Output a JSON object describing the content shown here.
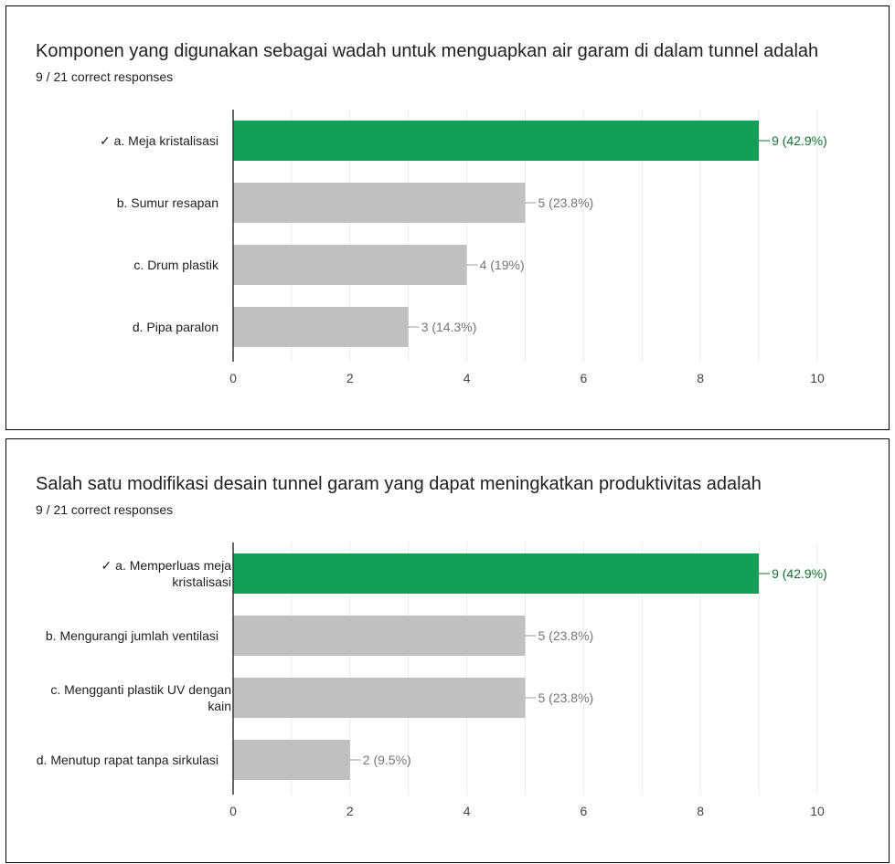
{
  "colors": {
    "correct": "#129e57",
    "other": "#c0c0c0",
    "correct_label": "#137333",
    "other_label": "#757575"
  },
  "chart_data": [
    {
      "type": "bar",
      "orientation": "horizontal",
      "title": "Komponen yang digunakan sebagai wadah untuk menguapkan air garam di dalam tunnel adalah",
      "subtitle": "9 / 21 correct responses",
      "categories": [
        [
          "✓ a. Meja kristalisasi"
        ],
        [
          "b. Sumur resapan"
        ],
        [
          "c. Drum plastik"
        ],
        [
          "d. Pipa paralon"
        ]
      ],
      "values": [
        9,
        5,
        4,
        3
      ],
      "labels": [
        "9 (42.9%)",
        "5 (23.8%)",
        "4 (19%)",
        "3 (14.3%)"
      ],
      "correct": [
        true,
        false,
        false,
        false
      ],
      "xlim": [
        0,
        10
      ],
      "xticks": [
        0,
        2,
        4,
        6,
        8,
        10
      ],
      "grid": true
    },
    {
      "type": "bar",
      "orientation": "horizontal",
      "title": "Salah satu modifikasi desain tunnel garam yang dapat meningkatkan produktivitas adalah",
      "subtitle": "9 / 21 correct responses",
      "categories": [
        [
          "✓ a. Memperluas meja",
          "kristalisasi"
        ],
        [
          "b. Mengurangi jumlah ventilasi"
        ],
        [
          "c. Mengganti plastik UV dengan",
          "kain"
        ],
        [
          "d. Menutup rapat tanpa sirkulasi"
        ]
      ],
      "values": [
        9,
        5,
        5,
        2
      ],
      "labels": [
        "9 (42.9%)",
        "5 (23.8%)",
        "5 (23.8%)",
        "2 (9.5%)"
      ],
      "correct": [
        true,
        false,
        false,
        false
      ],
      "xlim": [
        0,
        10
      ],
      "xticks": [
        0,
        2,
        4,
        6,
        8,
        10
      ],
      "grid": true
    }
  ]
}
